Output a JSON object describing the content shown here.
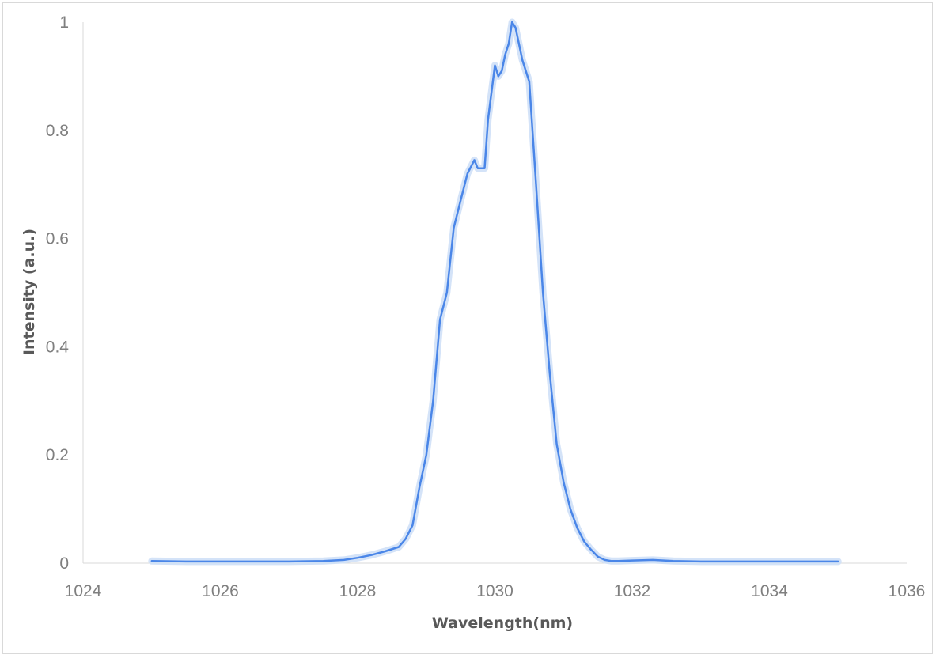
{
  "chart_data": {
    "type": "line",
    "title": "",
    "xlabel": "Wavelength(nm)",
    "ylabel": "Intensity (a.u.)",
    "xlim": [
      1024,
      1036
    ],
    "ylim": [
      0,
      1
    ],
    "x_ticks": [
      "1024",
      "1026",
      "1028",
      "1030",
      "1032",
      "1034",
      "1036"
    ],
    "y_ticks": [
      "0",
      "0.2",
      "0.4",
      "0.6",
      "0.8",
      "1"
    ],
    "grid": false,
    "legend": "none",
    "line_color": "#4a86e8",
    "halo_color": "#cfe0f7",
    "axis_color": "#d9d9d9",
    "series": [
      {
        "x": [
          1025.0,
          1025.5,
          1026.0,
          1026.5,
          1027.0,
          1027.5,
          1027.8,
          1028.0,
          1028.2,
          1028.4,
          1028.6,
          1028.7,
          1028.8,
          1028.9,
          1029.0,
          1029.1,
          1029.2,
          1029.3,
          1029.4,
          1029.5,
          1029.6,
          1029.7,
          1029.75,
          1029.85,
          1029.9,
          1030.0,
          1030.05,
          1030.1,
          1030.15,
          1030.2,
          1030.25,
          1030.3,
          1030.35,
          1030.4,
          1030.5,
          1030.6,
          1030.7,
          1030.8,
          1030.9,
          1031.0,
          1031.1,
          1031.2,
          1031.3,
          1031.4,
          1031.5,
          1031.6,
          1031.7,
          1031.8,
          1032.0,
          1032.3,
          1032.6,
          1033.0,
          1033.5,
          1034.0,
          1034.5,
          1035.0
        ],
        "y": [
          0.004,
          0.003,
          0.003,
          0.003,
          0.003,
          0.004,
          0.006,
          0.01,
          0.015,
          0.022,
          0.03,
          0.045,
          0.07,
          0.14,
          0.2,
          0.3,
          0.45,
          0.5,
          0.62,
          0.67,
          0.72,
          0.745,
          0.73,
          0.73,
          0.82,
          0.92,
          0.9,
          0.91,
          0.94,
          0.96,
          1.0,
          0.99,
          0.96,
          0.93,
          0.89,
          0.7,
          0.5,
          0.35,
          0.22,
          0.15,
          0.1,
          0.065,
          0.04,
          0.025,
          0.012,
          0.006,
          0.004,
          0.004,
          0.005,
          0.006,
          0.004,
          0.003,
          0.003,
          0.003,
          0.003,
          0.003
        ]
      }
    ]
  }
}
